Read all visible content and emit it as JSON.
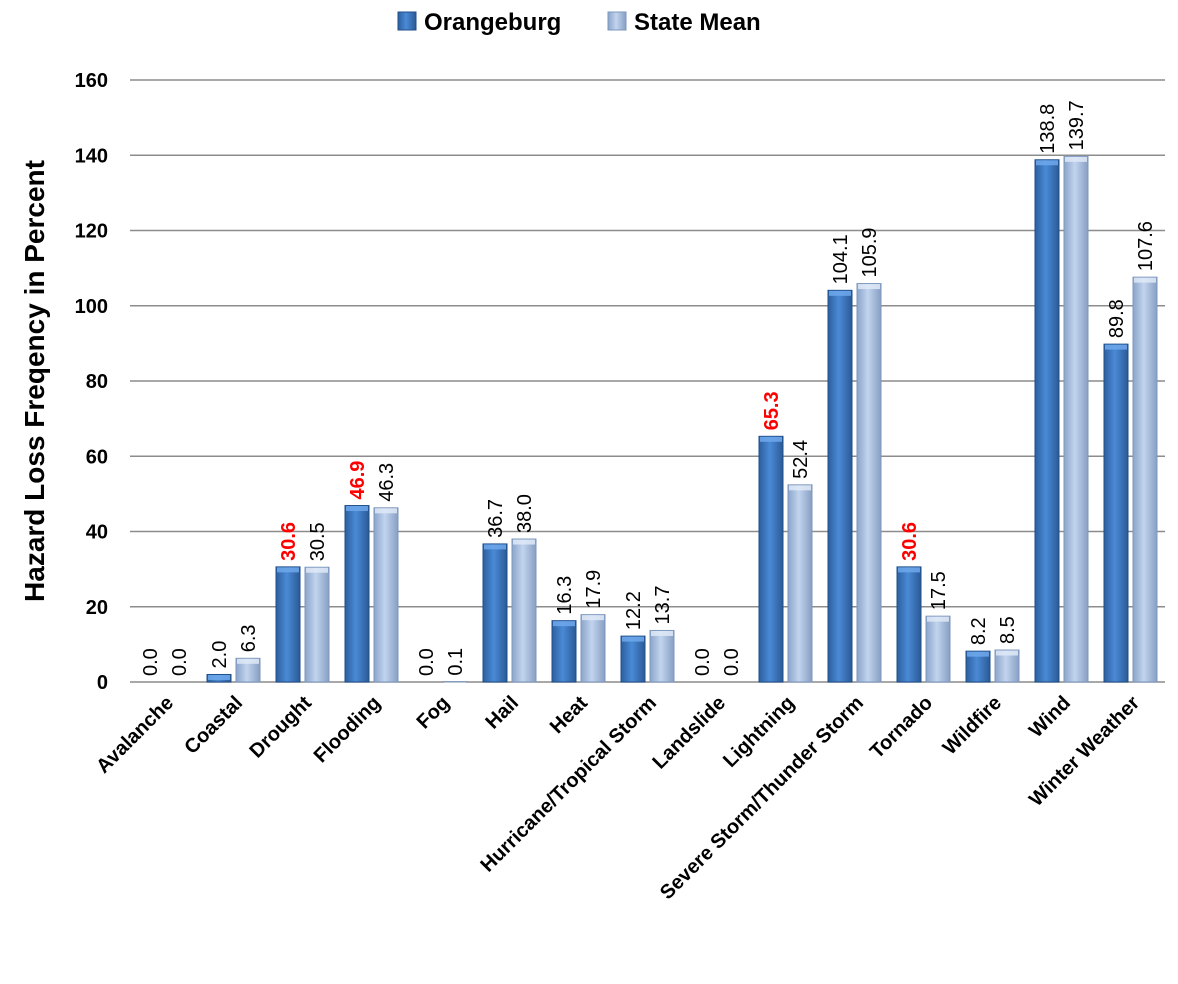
{
  "chart_data": {
    "type": "bar",
    "title": "",
    "xlabel": "",
    "ylabel": "Hazard Loss Freqency in Percent",
    "ylim": [
      0,
      160
    ],
    "yticks": [
      "0",
      "20",
      "40",
      "60",
      "80",
      "100",
      "120",
      "140",
      "160"
    ],
    "grid": true,
    "legend_position": "top",
    "categories": [
      "Avalanche",
      "Coastal",
      "Drought",
      "Flooding",
      "Fog",
      "Hail",
      "Heat",
      "Hurricane/Tropical Storm",
      "Landslide",
      "Lightning",
      "Severe Storm/Thunder Storm",
      "Tornado",
      "Wildfire",
      "Wind",
      "Winter Weather"
    ],
    "series": [
      {
        "name": "Orangeburg",
        "color": "#3a78c4",
        "values": [
          0.0,
          2.0,
          30.6,
          46.9,
          0.0,
          36.7,
          16.3,
          12.2,
          0.0,
          65.3,
          104.1,
          30.6,
          8.2,
          138.8,
          89.8
        ],
        "labels": [
          "0.0",
          "2.0",
          "30.6",
          "46.9",
          "0.0",
          "36.7",
          "16.3",
          "12.2",
          "0.0",
          "65.3",
          "104.1",
          "30.6",
          "8.2",
          "138.8",
          "89.8"
        ]
      },
      {
        "name": "State Mean",
        "color": "#a4bde0",
        "values": [
          0.0,
          6.3,
          30.5,
          46.3,
          0.1,
          38.0,
          17.9,
          13.7,
          0.0,
          52.4,
          105.9,
          17.5,
          8.5,
          139.7,
          107.6
        ],
        "labels": [
          "0.0",
          "6.3",
          "30.5",
          "46.3",
          "0.1",
          "38.0",
          "17.9",
          "13.7",
          "0.0",
          "52.4",
          "105.9",
          "17.5",
          "8.5",
          "139.7",
          "107.6"
        ]
      }
    ],
    "highlight_color": "#ff0000",
    "highlighted_labels": [
      {
        "series": 0,
        "category": "Drought"
      },
      {
        "series": 0,
        "category": "Flooding"
      },
      {
        "series": 0,
        "category": "Lightning"
      },
      {
        "series": 0,
        "category": "Tornado"
      }
    ]
  }
}
